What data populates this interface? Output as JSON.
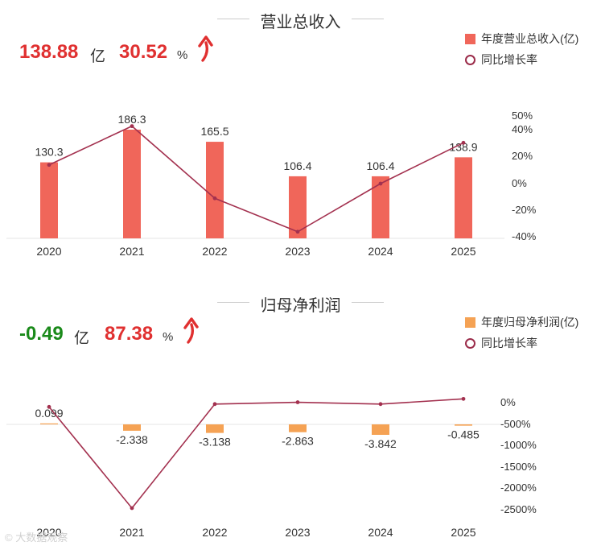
{
  "charts": [
    {
      "title": "营业总收入",
      "kpi": {
        "value": "138.88",
        "unit": "亿",
        "growth": "30.52",
        "growth_unit": "%",
        "value_color": "#e03030",
        "growth_color": "#e03030"
      },
      "legend": {
        "bar_label": "年度营业总收入(亿)",
        "line_label": "同比增长率"
      }
    },
    {
      "title": "归母净利润",
      "kpi": {
        "value": "-0.49",
        "unit": "亿",
        "growth": "87.38",
        "growth_unit": "%",
        "value_color": "#1a8a1a",
        "growth_color": "#e03030"
      },
      "legend": {
        "bar_label": "年度归母净利润(亿)",
        "line_label": "同比增长率"
      }
    }
  ],
  "chart_data": [
    {
      "type": "bar",
      "title": "营业总收入",
      "categories": [
        "2020",
        "2021",
        "2022",
        "2023",
        "2024",
        "2025"
      ],
      "series": [
        {
          "name": "年度营业总收入(亿)",
          "type": "bar",
          "values": [
            130.3,
            186.3,
            165.5,
            106.4,
            106.4,
            138.9
          ],
          "labels": [
            "130.3",
            "186.3",
            "165.5",
            "106.4",
            "106.4",
            "138.9"
          ]
        },
        {
          "name": "同比增长率",
          "type": "line",
          "axis": "right",
          "values": [
            14,
            43,
            -11,
            -36,
            0,
            30.52
          ]
        }
      ],
      "y_right_ticks": [
        "50%",
        "40%",
        "20%",
        "0%",
        "-20%",
        "-40%"
      ],
      "bar_color": "#f0665a",
      "line_color": "#a3314f"
    },
    {
      "type": "bar",
      "title": "归母净利润",
      "categories": [
        "2020",
        "2021",
        "2022",
        "2023",
        "2024",
        "2025"
      ],
      "series": [
        {
          "name": "年度归母净利润(亿)",
          "type": "bar",
          "values": [
            0.099,
            -2.338,
            -3.138,
            -2.863,
            -3.842,
            -0.485
          ],
          "labels": [
            "0.099",
            "-2.338",
            "-3.138",
            "-2.863",
            "-3.842",
            "-0.485"
          ]
        },
        {
          "name": "同比增长率",
          "type": "line",
          "axis": "right",
          "values": [
            -100,
            -2462,
            -34,
            9,
            -34,
            87.38
          ]
        }
      ],
      "y_right_ticks": [
        "0%",
        "-500%",
        "-1000%",
        "-1500%",
        "-2000%",
        "-2500%"
      ],
      "bar_color": "#f5a254",
      "line_color": "#a3314f"
    }
  ],
  "watermark": "© 大数据观察"
}
